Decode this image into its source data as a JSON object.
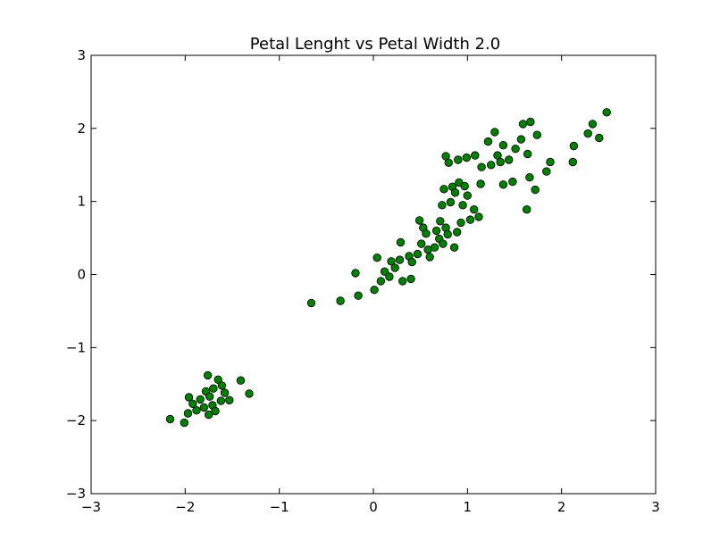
{
  "chart_data": {
    "type": "scatter",
    "title": "Petal Lenght vs Petal Width 2.0",
    "xlabel": "",
    "ylabel": "",
    "xlim": [
      -3,
      3
    ],
    "ylim": [
      -3,
      3
    ],
    "x_ticks": [
      -3,
      -2,
      -1,
      0,
      1,
      2,
      3
    ],
    "y_ticks": [
      -3,
      -2,
      -1,
      0,
      1,
      2,
      3
    ],
    "x_tick_labels": [
      "−3",
      "−2",
      "−1",
      "0",
      "1",
      "2",
      "3"
    ],
    "y_tick_labels": [
      "−3",
      "−2",
      "−1",
      "0",
      "1",
      "2",
      "3"
    ],
    "grid": false,
    "marker_color": "#008000",
    "marker_edge_color": "#000000",
    "series": [
      {
        "points": [
          [
            -2.16,
            -1.98
          ],
          [
            -2.01,
            -2.03
          ],
          [
            -1.97,
            -1.9
          ],
          [
            -1.96,
            -1.68
          ],
          [
            -1.92,
            -1.77
          ],
          [
            -1.88,
            -1.86
          ],
          [
            -1.84,
            -1.71
          ],
          [
            -1.8,
            -1.82
          ],
          [
            -1.78,
            -1.6
          ],
          [
            -1.76,
            -1.38
          ],
          [
            -1.75,
            -1.92
          ],
          [
            -1.74,
            -1.67
          ],
          [
            -1.71,
            -1.79
          ],
          [
            -1.7,
            -1.56
          ],
          [
            -1.68,
            -1.87
          ],
          [
            -1.65,
            -1.44
          ],
          [
            -1.62,
            -1.73
          ],
          [
            -1.61,
            -1.52
          ],
          [
            -1.58,
            -1.62
          ],
          [
            -1.53,
            -1.72
          ],
          [
            -1.41,
            -1.45
          ],
          [
            -1.32,
            -1.63
          ],
          [
            -0.66,
            -0.39
          ],
          [
            -0.35,
            -0.36
          ],
          [
            -0.19,
            0.02
          ],
          [
            -0.16,
            -0.29
          ],
          [
            0.01,
            -0.21
          ],
          [
            0.04,
            0.23
          ],
          [
            0.08,
            -0.09
          ],
          [
            0.12,
            0.04
          ],
          [
            0.17,
            -0.03
          ],
          [
            0.19,
            0.18
          ],
          [
            0.23,
            0.09
          ],
          [
            0.28,
            0.2
          ],
          [
            0.29,
            0.44
          ],
          [
            0.31,
            -0.09
          ],
          [
            0.38,
            0.25
          ],
          [
            0.4,
            -0.06
          ],
          [
            0.41,
            0.17
          ],
          [
            0.47,
            0.28
          ],
          [
            0.49,
            0.74
          ],
          [
            0.51,
            0.42
          ],
          [
            0.53,
            0.64
          ],
          [
            0.56,
            0.56
          ],
          [
            0.58,
            0.34
          ],
          [
            0.6,
            0.24
          ],
          [
            0.65,
            0.37
          ],
          [
            0.67,
            0.6
          ],
          [
            0.7,
            0.49
          ],
          [
            0.71,
            0.73
          ],
          [
            0.73,
            0.95
          ],
          [
            0.74,
            0.42
          ],
          [
            0.75,
            1.17
          ],
          [
            0.77,
            0.64
          ],
          [
            0.79,
            0.55
          ],
          [
            0.82,
            0.99
          ],
          [
            0.84,
            1.2
          ],
          [
            0.86,
            0.37
          ],
          [
            0.87,
            1.12
          ],
          [
            0.89,
            0.58
          ],
          [
            0.91,
            1.26
          ],
          [
            0.93,
            0.71
          ],
          [
            0.95,
            0.95
          ],
          [
            0.97,
            1.21
          ],
          [
            1.0,
            1.08
          ],
          [
            1.03,
            0.75
          ],
          [
            1.07,
            0.89
          ],
          [
            1.12,
            0.79
          ],
          [
            1.14,
            1.24
          ],
          [
            1.15,
            1.47
          ],
          [
            0.77,
            1.62
          ],
          [
            0.8,
            1.53
          ],
          [
            0.9,
            1.57
          ],
          [
            0.99,
            1.6
          ],
          [
            1.08,
            1.63
          ],
          [
            1.22,
            1.82
          ],
          [
            1.25,
            1.5
          ],
          [
            1.29,
            1.95
          ],
          [
            1.32,
            1.63
          ],
          [
            1.35,
            1.54
          ],
          [
            1.38,
            1.77
          ],
          [
            1.38,
            1.23
          ],
          [
            1.44,
            1.57
          ],
          [
            1.48,
            1.27
          ],
          [
            1.51,
            1.72
          ],
          [
            1.57,
            1.85
          ],
          [
            1.59,
            2.06
          ],
          [
            1.63,
            0.89
          ],
          [
            1.64,
            1.65
          ],
          [
            1.66,
            1.33
          ],
          [
            1.67,
            2.09
          ],
          [
            1.72,
            1.16
          ],
          [
            1.74,
            1.91
          ],
          [
            1.84,
            1.41
          ],
          [
            1.88,
            1.54
          ],
          [
            2.12,
            1.54
          ],
          [
            2.13,
            1.76
          ],
          [
            2.28,
            1.93
          ],
          [
            2.33,
            2.06
          ],
          [
            2.4,
            1.87
          ],
          [
            2.48,
            2.22
          ]
        ]
      }
    ]
  }
}
